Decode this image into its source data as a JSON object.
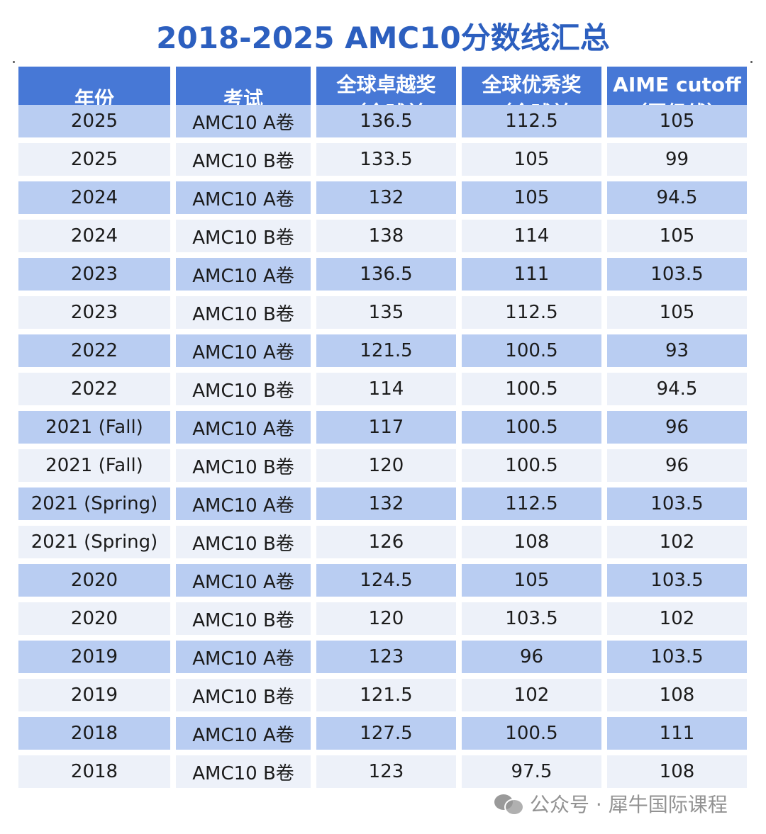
{
  "title": "2018-2025 AMC10分数线汇总",
  "headers": [
    "年份",
    "考试",
    "全球卓越奖\n（全球前",
    "全球优秀奖\n（全球前",
    "AIME cutoff\n（晋级线）"
  ],
  "rows": [
    [
      "2025",
      "AMC10 A卷",
      "136.5",
      "112.5",
      "105"
    ],
    [
      "2025",
      "AMC10 B卷",
      "133.5",
      "105",
      "99"
    ],
    [
      "2024",
      "AMC10 A卷",
      "132",
      "105",
      "94.5"
    ],
    [
      "2024",
      "AMC10 B卷",
      "138",
      "114",
      "105"
    ],
    [
      "2023",
      "AMC10 A卷",
      "136.5",
      "111",
      "103.5"
    ],
    [
      "2023",
      "AMC10 B卷",
      "135",
      "112.5",
      "105"
    ],
    [
      "2022",
      "AMC10 A卷",
      "121.5",
      "100.5",
      "93"
    ],
    [
      "2022",
      "AMC10 B卷",
      "114",
      "100.5",
      "94.5"
    ],
    [
      "2021 (Fall)",
      "AMC10 A卷",
      "117",
      "100.5",
      "96"
    ],
    [
      "2021 (Fall)",
      "AMC10 B卷",
      "120",
      "100.5",
      "96"
    ],
    [
      "2021 (Spring)",
      "AMC10 A卷",
      "132",
      "112.5",
      "103.5"
    ],
    [
      "2021 (Spring)",
      "AMC10 B卷",
      "126",
      "108",
      "102"
    ],
    [
      "2020",
      "AMC10 A卷",
      "124.5",
      "105",
      "103.5"
    ],
    [
      "2020",
      "AMC10 B卷",
      "120",
      "103.5",
      "102"
    ],
    [
      "2019",
      "AMC10 A卷",
      "123",
      "96",
      "103.5"
    ],
    [
      "2019",
      "AMC10 B卷",
      "121.5",
      "102",
      "108"
    ],
    [
      "2018",
      "AMC10 A卷",
      "127.5",
      "100.5",
      "111"
    ],
    [
      "2018",
      "AMC10 B卷",
      "123",
      "97.5",
      "108"
    ]
  ],
  "watermark": "公众号 · 犀牛国际课程",
  "colors": {
    "title": "#2c5fbf",
    "header_bg": "#4778d6",
    "row_odd_bg": "#b9cdf2",
    "row_even_bg": "#edf1f9"
  }
}
